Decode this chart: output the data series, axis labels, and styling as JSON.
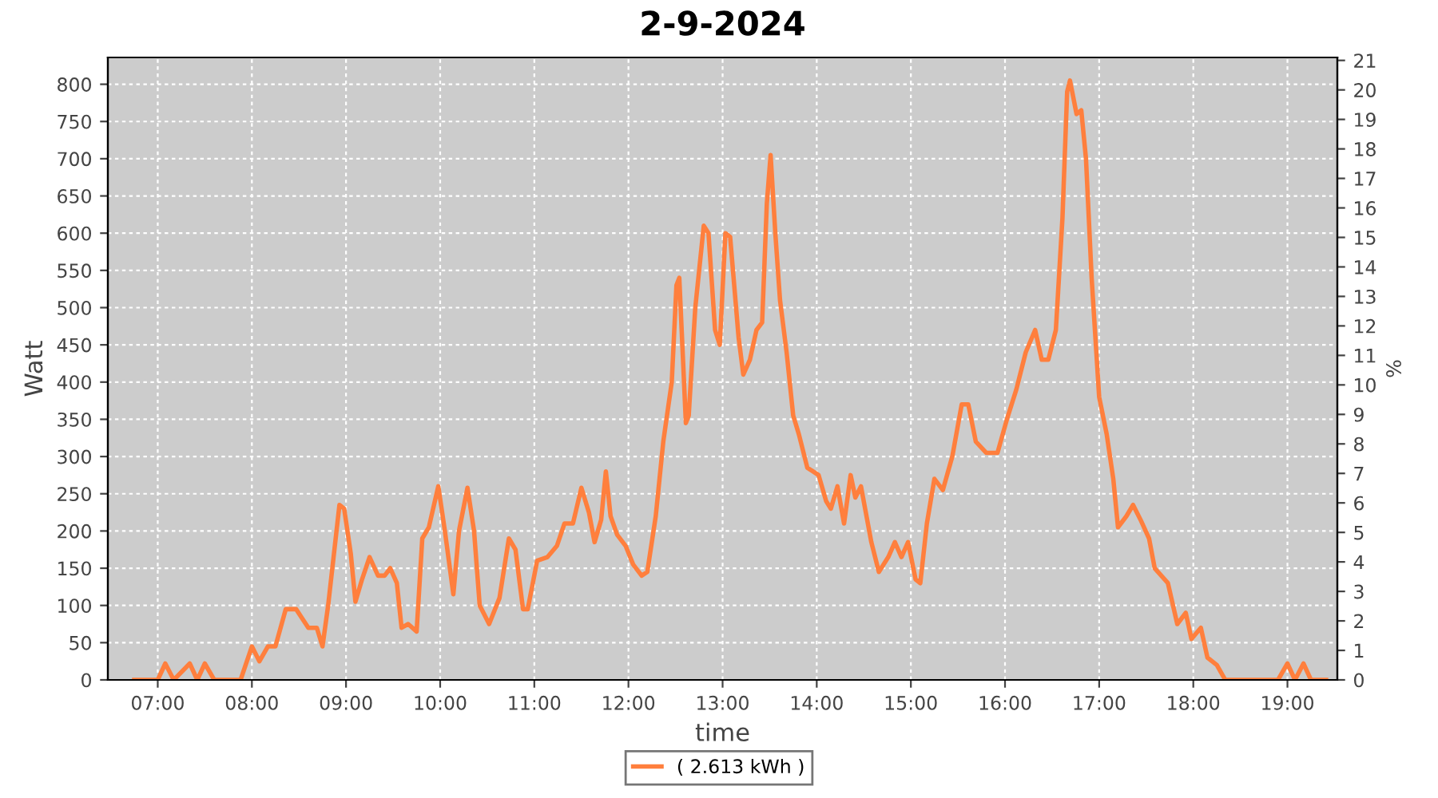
{
  "chart_data": {
    "type": "line",
    "title": "2-9-2024",
    "xlabel": "time",
    "ylabel": "Watt",
    "y2label": "%",
    "xlim": [
      6.47,
      19.53
    ],
    "xticks": [
      {
        "value": 7,
        "label": "07:00"
      },
      {
        "value": 8,
        "label": "08:00"
      },
      {
        "value": 9,
        "label": "09:00"
      },
      {
        "value": 10,
        "label": "10:00"
      },
      {
        "value": 11,
        "label": "11:00"
      },
      {
        "value": 12,
        "label": "12:00"
      },
      {
        "value": 13,
        "label": "13:00"
      },
      {
        "value": 14,
        "label": "14:00"
      },
      {
        "value": 15,
        "label": "15:00"
      },
      {
        "value": 16,
        "label": "16:00"
      },
      {
        "value": 17,
        "label": "17:00"
      },
      {
        "value": 18,
        "label": "18:00"
      },
      {
        "value": 19,
        "label": "19:00"
      }
    ],
    "ylim": [
      0,
      836
    ],
    "yticks": [
      0,
      50,
      100,
      150,
      200,
      250,
      300,
      350,
      400,
      450,
      500,
      550,
      600,
      650,
      700,
      750,
      800
    ],
    "y2lim": [
      0,
      21.1
    ],
    "y2ticks": [
      0,
      1,
      2,
      3,
      4,
      5,
      6,
      7,
      8,
      9,
      10,
      11,
      12,
      13,
      14,
      15,
      16,
      17,
      18,
      19,
      20,
      21
    ],
    "grid": true,
    "legend": "bottom",
    "line_style": "solid",
    "marker": "none",
    "series": [
      {
        "name": "( 2.613 kWh )",
        "color": "#ff7f3d",
        "x": [
          6.75,
          7.0,
          7.08,
          7.17,
          7.34,
          7.42,
          7.5,
          7.6,
          7.88,
          8.0,
          8.08,
          8.17,
          8.25,
          8.36,
          8.47,
          8.6,
          8.69,
          8.75,
          8.81,
          8.93,
          8.98,
          9.05,
          9.1,
          9.17,
          9.25,
          9.34,
          9.41,
          9.47,
          9.54,
          9.59,
          9.66,
          9.75,
          9.81,
          9.88,
          9.98,
          10.05,
          10.14,
          10.2,
          10.29,
          10.36,
          10.42,
          10.52,
          10.63,
          10.73,
          10.8,
          10.88,
          10.93,
          11.03,
          11.14,
          11.24,
          11.32,
          11.41,
          11.5,
          11.58,
          11.64,
          11.71,
          11.76,
          11.81,
          11.88,
          11.97,
          12.05,
          12.14,
          12.2,
          12.29,
          12.37,
          12.46,
          12.51,
          12.54,
          12.61,
          12.64,
          12.71,
          12.8,
          12.85,
          12.92,
          12.97,
          13.03,
          13.08,
          13.17,
          13.22,
          13.29,
          13.36,
          13.42,
          13.47,
          13.51,
          13.56,
          13.61,
          13.68,
          13.75,
          13.81,
          13.9,
          14.02,
          14.1,
          14.15,
          14.22,
          14.29,
          14.36,
          14.41,
          14.47,
          14.58,
          14.66,
          14.76,
          14.83,
          14.9,
          14.97,
          15.05,
          15.1,
          15.17,
          15.25,
          15.34,
          15.44,
          15.54,
          15.61,
          15.69,
          15.8,
          15.92,
          16.02,
          16.12,
          16.22,
          16.32,
          16.39,
          16.46,
          16.54,
          16.61,
          16.66,
          16.69,
          16.76,
          16.81,
          16.86,
          16.92,
          17.0,
          17.08,
          17.15,
          17.2,
          17.29,
          17.36,
          17.44,
          17.53,
          17.59,
          17.66,
          17.73,
          17.83,
          17.92,
          17.98,
          18.08,
          18.15,
          18.25,
          18.34,
          18.9,
          19.0,
          19.08,
          19.17,
          19.25,
          19.41
        ],
        "values": [
          0,
          0,
          22,
          0,
          22,
          0,
          22,
          0,
          0,
          45,
          25,
          45,
          45,
          95,
          95,
          70,
          70,
          45,
          100,
          235,
          230,
          170,
          105,
          135,
          165,
          140,
          140,
          150,
          130,
          70,
          75,
          65,
          190,
          205,
          260,
          200,
          115,
          200,
          258,
          200,
          100,
          75,
          110,
          190,
          175,
          95,
          95,
          160,
          165,
          180,
          210,
          210,
          258,
          225,
          185,
          215,
          280,
          220,
          195,
          180,
          155,
          140,
          145,
          220,
          320,
          400,
          530,
          540,
          345,
          355,
          500,
          610,
          600,
          470,
          450,
          600,
          595,
          460,
          410,
          430,
          470,
          480,
          640,
          705,
          600,
          510,
          440,
          355,
          330,
          285,
          275,
          240,
          230,
          260,
          210,
          275,
          245,
          260,
          185,
          145,
          165,
          185,
          165,
          185,
          135,
          130,
          210,
          270,
          255,
          300,
          370,
          370,
          320,
          305,
          305,
          350,
          390,
          440,
          470,
          430,
          430,
          470,
          620,
          790,
          805,
          760,
          765,
          700,
          540,
          380,
          330,
          270,
          205,
          220,
          235,
          215,
          190,
          150,
          140,
          130,
          75,
          90,
          55,
          70,
          30,
          20,
          0,
          0,
          22,
          0,
          22,
          0,
          0
        ]
      }
    ]
  }
}
